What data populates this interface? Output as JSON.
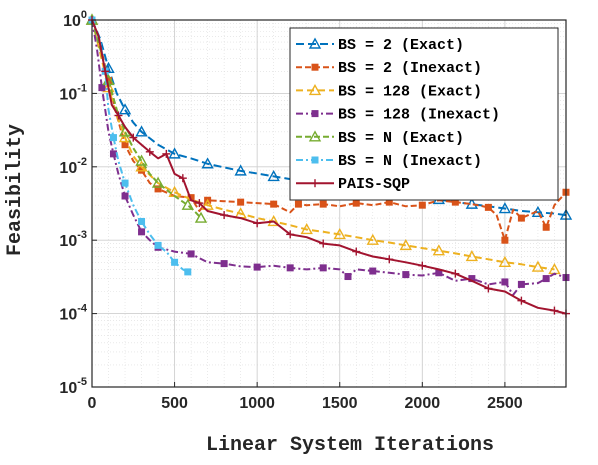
{
  "chart_data": {
    "type": "line",
    "xlabel": "Linear System Iterations",
    "ylabel": "Feasibility",
    "xlim": [
      0,
      2870
    ],
    "ylim_exp": [
      -5,
      0
    ],
    "y_scale": "log",
    "grid": true,
    "legend_position": "top-right",
    "x_ticks": [
      "0",
      "500",
      "1000",
      "1500",
      "2000",
      "2500"
    ],
    "y_tick_base": "10",
    "y_tick_exponents": [
      "0",
      "-1",
      "-2",
      "-3",
      "-4",
      "-5"
    ],
    "series": [
      {
        "name": "BS = 2 (Exact)",
        "color": "#0072BD",
        "dash": "8,4",
        "marker": "triangle",
        "x": [
          0,
          50,
          100,
          150,
          200,
          250,
          300,
          400,
          500,
          600,
          700,
          800,
          900,
          1000,
          1100,
          1200,
          1300,
          1400,
          1500,
          1600,
          1700,
          1800,
          1900,
          2000,
          2100,
          2200,
          2300,
          2400,
          2500,
          2600,
          2700,
          2800,
          2870
        ],
        "y": [
          1.0,
          0.55,
          0.22,
          0.1,
          0.06,
          0.04,
          0.03,
          0.02,
          0.015,
          0.013,
          0.011,
          0.0098,
          0.0088,
          0.0081,
          0.0074,
          0.0068,
          0.0063,
          0.0058,
          0.0053,
          0.0049,
          0.0046,
          0.0043,
          0.0041,
          0.0038,
          0.0036,
          0.0033,
          0.0031,
          0.0029,
          0.0027,
          0.0025,
          0.0024,
          0.0023,
          0.0022
        ]
      },
      {
        "name": "BS = 2 (Inexact)",
        "color": "#D95319",
        "dash": "6,3",
        "marker": "square",
        "x": [
          0,
          50,
          100,
          150,
          200,
          250,
          300,
          350,
          400,
          500,
          600,
          650,
          700,
          800,
          900,
          1000,
          1100,
          1200,
          1250,
          1300,
          1400,
          1500,
          1600,
          1700,
          1800,
          1900,
          2000,
          2100,
          2200,
          2300,
          2400,
          2450,
          2500,
          2550,
          2600,
          2700,
          2750,
          2800,
          2870
        ],
        "y": [
          1.0,
          0.45,
          0.15,
          0.05,
          0.02,
          0.012,
          0.009,
          0.006,
          0.005,
          0.004,
          0.0038,
          0.0025,
          0.0035,
          0.0034,
          0.0033,
          0.0032,
          0.0031,
          0.0024,
          0.0031,
          0.003,
          0.0031,
          0.0029,
          0.0032,
          0.003,
          0.0033,
          0.0029,
          0.003,
          0.0035,
          0.0033,
          0.0031,
          0.0028,
          0.0022,
          0.001,
          0.0026,
          0.002,
          0.0025,
          0.0015,
          0.003,
          0.0045
        ]
      },
      {
        "name": "BS = 128 (Exact)",
        "color": "#EDB120",
        "dash": "7,4",
        "marker": "triangle",
        "x": [
          0,
          50,
          100,
          150,
          200,
          250,
          300,
          400,
          500,
          600,
          700,
          800,
          900,
          1000,
          1100,
          1200,
          1300,
          1400,
          1500,
          1600,
          1700,
          1800,
          1900,
          2000,
          2100,
          2200,
          2300,
          2400,
          2500,
          2600,
          2700,
          2800
        ],
        "y": [
          1.0,
          0.35,
          0.12,
          0.05,
          0.025,
          0.014,
          0.01,
          0.006,
          0.0045,
          0.0036,
          0.003,
          0.0026,
          0.0023,
          0.002,
          0.0018,
          0.0016,
          0.0014,
          0.0013,
          0.0012,
          0.0011,
          0.001,
          0.00093,
          0.00085,
          0.00078,
          0.00072,
          0.00066,
          0.0006,
          0.00055,
          0.0005,
          0.00047,
          0.00043,
          0.0004
        ]
      },
      {
        "name": "BS = 128 (Inexact)",
        "color": "#7E2F8E",
        "dash": "7,3,2,3",
        "marker": "square",
        "x": [
          0,
          30,
          60,
          100,
          130,
          160,
          200,
          250,
          300,
          350,
          400,
          500,
          600,
          700,
          800,
          900,
          1000,
          1100,
          1200,
          1300,
          1400,
          1500,
          1550,
          1600,
          1700,
          1800,
          1900,
          2000,
          2100,
          2200,
          2300,
          2400,
          2500,
          2550,
          2600,
          2700,
          2750,
          2800,
          2870
        ],
        "y": [
          1.0,
          0.4,
          0.12,
          0.03,
          0.015,
          0.008,
          0.004,
          0.0022,
          0.0013,
          0.001,
          0.0008,
          0.0007,
          0.00065,
          0.0005,
          0.00048,
          0.00044,
          0.00043,
          0.00045,
          0.00042,
          0.0004,
          0.00042,
          0.0004,
          0.00032,
          0.0004,
          0.00038,
          0.00036,
          0.00034,
          0.00033,
          0.00036,
          0.00028,
          0.0003,
          0.00025,
          0.00027,
          0.00018,
          0.00025,
          0.00026,
          0.0003,
          0.00035,
          0.00031
        ]
      },
      {
        "name": "BS = N (Exact)",
        "color": "#77AC30",
        "dash": "6,3",
        "marker": "triangle",
        "x": [
          0,
          50,
          100,
          150,
          200,
          250,
          300,
          350,
          400,
          500,
          580,
          620,
          660
        ],
        "y": [
          1.0,
          0.4,
          0.15,
          0.06,
          0.03,
          0.018,
          0.012,
          0.008,
          0.006,
          0.004,
          0.003,
          0.0025,
          0.002
        ]
      },
      {
        "name": "BS = N (Inexact)",
        "color": "#4DBEEE",
        "dash": "7,3,2,3",
        "marker": "square",
        "x": [
          0,
          50,
          80,
          100,
          130,
          160,
          200,
          250,
          300,
          350,
          400,
          450,
          500,
          550,
          580
        ],
        "y": [
          1.0,
          0.5,
          0.2,
          0.06,
          0.025,
          0.012,
          0.006,
          0.003,
          0.0018,
          0.0012,
          0.00085,
          0.0007,
          0.0005,
          0.0004,
          0.00037
        ]
      },
      {
        "name": "PAIS-SQP",
        "color": "#A2142F",
        "dash": "",
        "marker": "cross",
        "x": [
          0,
          40,
          80,
          120,
          160,
          200,
          250,
          300,
          350,
          400,
          450,
          500,
          550,
          600,
          650,
          700,
          800,
          900,
          1000,
          1100,
          1200,
          1300,
          1400,
          1500,
          1600,
          1700,
          1800,
          1900,
          2000,
          2100,
          2200,
          2300,
          2400,
          2500,
          2600,
          2700,
          2800,
          2870
        ],
        "y": [
          1.0,
          0.6,
          0.2,
          0.07,
          0.05,
          0.035,
          0.025,
          0.02,
          0.016,
          0.013,
          0.015,
          0.008,
          0.007,
          0.0035,
          0.0032,
          0.0025,
          0.0022,
          0.002,
          0.0017,
          0.0018,
          0.0012,
          0.0011,
          0.0009,
          0.00085,
          0.0007,
          0.0006,
          0.00055,
          0.0005,
          0.00045,
          0.0004,
          0.00035,
          0.00028,
          0.00022,
          0.0002,
          0.00015,
          0.00012,
          0.00011,
          0.0001
        ]
      }
    ]
  }
}
